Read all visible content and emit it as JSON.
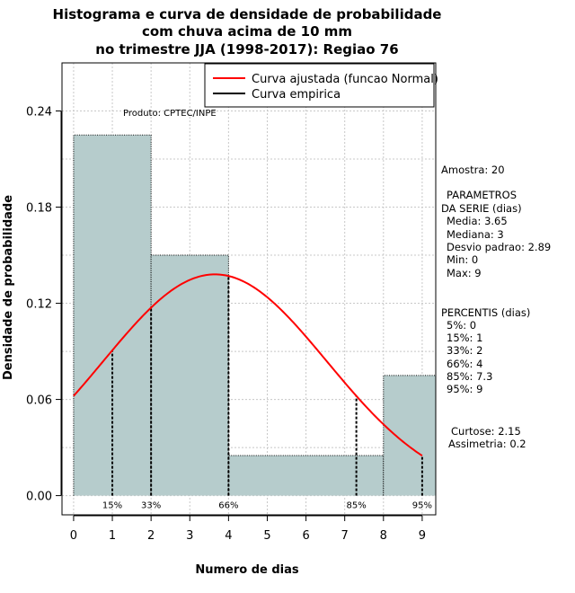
{
  "chart_data": {
    "type": "bar",
    "title_lines": [
      "Histograma e curva de densidade de probabilidade",
      "com chuva acima de 10 mm",
      "no trimestre JJA (1998-2017): Regiao 76"
    ],
    "xlabel": "Numero de dias",
    "ylabel": "Densidade de probabilidade",
    "xlim": [
      -0.3,
      9.35
    ],
    "ylim": [
      -0.012,
      0.27
    ],
    "x_ticks": [
      0,
      1,
      2,
      3,
      4,
      5,
      6,
      7,
      8,
      9
    ],
    "x_tick_labels": [
      "0",
      "1",
      "2",
      "3",
      "4",
      "5",
      "6",
      "7",
      "8",
      "9"
    ],
    "y_ticks": [
      0.0,
      0.06,
      0.12,
      0.18,
      0.24
    ],
    "y_tick_labels": [
      "0.00",
      "0.06",
      "0.12",
      "0.18",
      "0.24"
    ],
    "grid": true,
    "bins": [
      {
        "start": 0,
        "end": 2,
        "density": 0.225
      },
      {
        "start": 2,
        "end": 4,
        "density": 0.15
      },
      {
        "start": 4,
        "end": 8,
        "density": 0.025
      },
      {
        "start": 8,
        "end": 9.35,
        "density": 0.075
      }
    ],
    "normal_curve": {
      "mean": 3.65,
      "sd": 2.89,
      "x_range": [
        0,
        9
      ]
    },
    "percentile_markers": [
      {
        "label": "15%",
        "x": 1.0
      },
      {
        "label": "33%",
        "x": 2.0
      },
      {
        "label": "66%",
        "x": 4.0
      },
      {
        "label": "85%",
        "x": 7.3
      },
      {
        "label": "95%",
        "x": 9.0
      }
    ],
    "legend": {
      "position": "top-right",
      "entries": [
        {
          "label": "Curva ajustada (funcao Normal)",
          "color": "#ff0000"
        },
        {
          "label": "Curva empirica",
          "color": "#000000"
        }
      ]
    },
    "annotation": "Produto: CPTEC/INPE",
    "colors": {
      "bar": "#b6cccc",
      "curve": "#ff0000",
      "grid": "#c8c8c8"
    }
  },
  "stats_panel": {
    "amostra": "Amostra: 20",
    "param_title_1": "PARAMETROS",
    "param_title_2": "DA SERIE (dias)",
    "media": "Media: 3.65",
    "mediana": "Mediana: 3",
    "desvio": "Desvio padrao: 2.89",
    "min": "Min: 0",
    "max": "Max: 9",
    "perc_title": "PERCENTIS (dias)",
    "p5": "5%: 0",
    "p15": "15%: 1",
    "p33": "33%: 2",
    "p66": "66%: 4",
    "p85": "85%: 7.3",
    "p95": "95%: 9",
    "curtose": "Curtose: 2.15",
    "assimetria": "Assimetria: 0.2"
  }
}
